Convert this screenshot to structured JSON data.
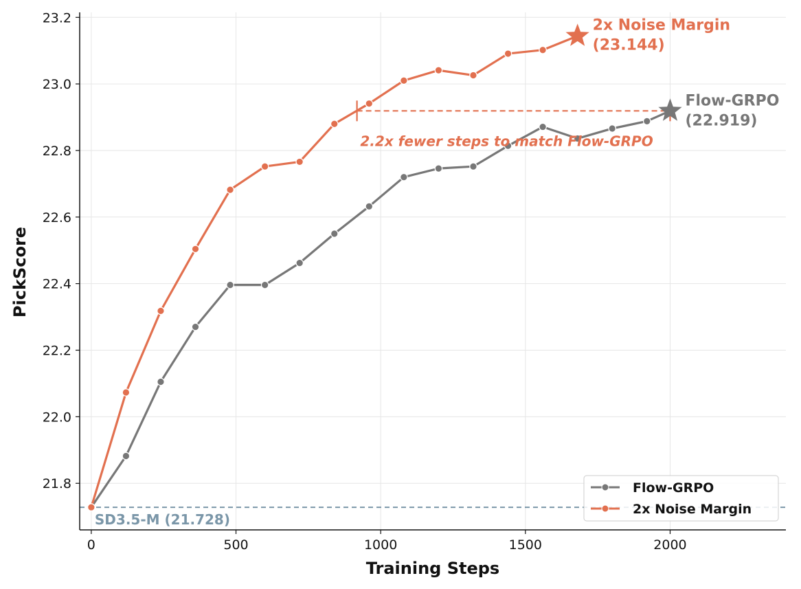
{
  "chart_data": {
    "type": "line",
    "xlabel": "Training Steps",
    "ylabel": "PickScore",
    "xlim": [
      -40,
      2400
    ],
    "ylim": [
      21.66,
      23.215
    ],
    "x_ticks": [
      0,
      500,
      1000,
      1500,
      2000
    ],
    "y_ticks": [
      21.8,
      22.0,
      22.2,
      22.4,
      22.6,
      22.8,
      23.0,
      23.2
    ],
    "grid": true,
    "legend_position": "bottom-right",
    "colors": {
      "flow_grpo": "#777777",
      "noise_margin": "#e2704f",
      "baseline": "#7a96a8"
    },
    "series": [
      {
        "name": "Flow-GRPO",
        "x": [
          0,
          120,
          240,
          360,
          480,
          600,
          720,
          840,
          960,
          1080,
          1200,
          1320,
          1440,
          1560,
          1680,
          1800,
          1920,
          2000
        ],
        "y": [
          21.728,
          21.882,
          22.105,
          22.27,
          22.396,
          22.396,
          22.462,
          22.55,
          22.632,
          22.72,
          22.746,
          22.752,
          22.814,
          22.871,
          22.836,
          22.866,
          22.888,
          22.919
        ]
      },
      {
        "name": "2x Noise Margin",
        "x": [
          0,
          120,
          240,
          360,
          480,
          600,
          720,
          840,
          960,
          1080,
          1200,
          1320,
          1440,
          1560,
          1680
        ],
        "y": [
          21.728,
          22.073,
          22.318,
          22.504,
          22.682,
          22.752,
          22.766,
          22.88,
          22.941,
          23.01,
          23.041,
          23.026,
          23.091,
          23.102,
          23.144
        ]
      }
    ],
    "baseline": {
      "label": "SD3.5-M (21.728)",
      "value": 21.728
    },
    "annotations": {
      "noise_margin_final": {
        "line1": "2x Noise Margin",
        "line2": "(23.144)",
        "x": 1680,
        "y": 23.144
      },
      "flow_grpo_final": {
        "line1": "Flow-GRPO",
        "line2": "(22.919)",
        "x": 2000,
        "y": 22.919
      },
      "match_line": {
        "text": "2.2x fewer steps to match Flow-GRPO",
        "x_start": 918,
        "x_end": 2000,
        "y": 22.919
      }
    }
  }
}
